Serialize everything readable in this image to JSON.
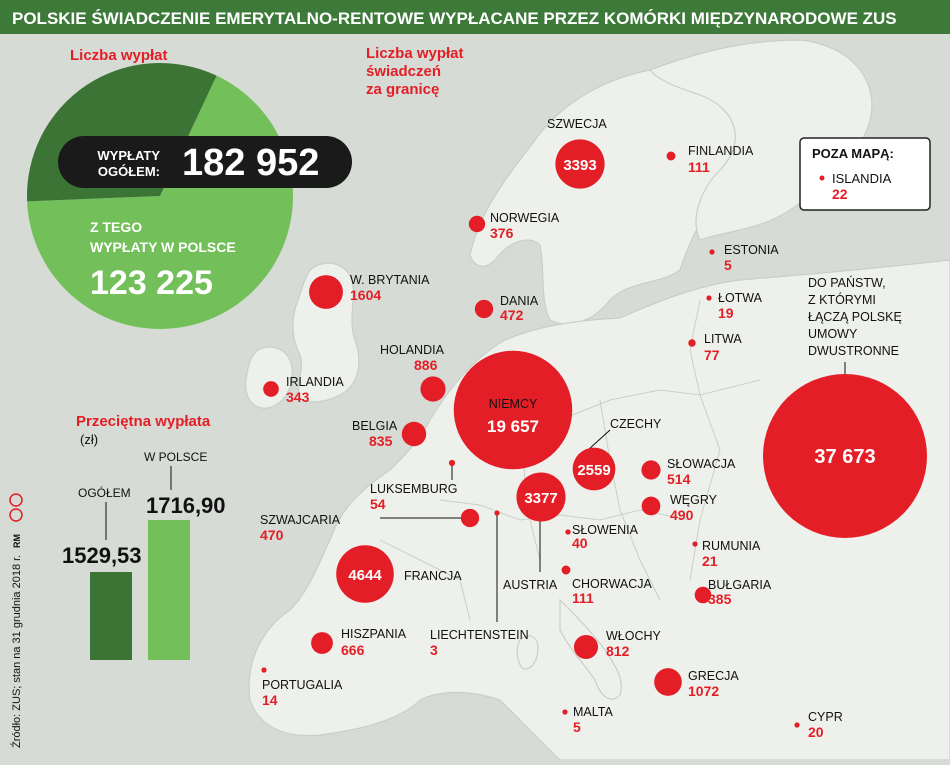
{
  "title": "POLSKIE ŚWIADCZENIE EMERYTALNO-RENTOWE WYPŁACANE PRZEZ KOMÓRKI MIĘDZYNARODOWE ZUS",
  "colors": {
    "header": "#3d7a3a",
    "red": "#e41e26",
    "dark_green": "#3b7434",
    "light_green": "#73c05a",
    "land": "#eef0ec",
    "sea": "#d6dbd5"
  },
  "pie": {
    "heading": "Liczba wypłat",
    "total_label_1": "WYPŁATY",
    "total_label_2": "OGÓŁEM:",
    "total_value": "182 952",
    "poland_label_1": "Z TEGO",
    "poland_label_2": "WYPŁATY W POLSCE",
    "poland_value": "123 225"
  },
  "map_heading": [
    "Liczba wypłat",
    "świadczeń",
    "za granicę"
  ],
  "offmap": {
    "title": "POZA MAPĄ:",
    "country": "ISLANDIA",
    "value": "22"
  },
  "bilateral_label": [
    "DO PAŃSTW,",
    "Z KTÓRYMI",
    "ŁĄCZĄ POLSKĘ",
    "UMOWY",
    "DWUSTRONNE"
  ],
  "source": "Źródło: ZUS; stan na 31 grudnia 2018 r.",
  "credit": "RM",
  "bars": {
    "heading": "Przeciętna wypłata",
    "unit": "(zł)",
    "labels": [
      "OGÓŁEM",
      "W POLSCE"
    ],
    "value_labels": [
      "1529,53",
      "1716,90"
    ]
  },
  "chart_data": [
    {
      "type": "pie",
      "categories": [
        "WYPŁATY W POLSCE",
        "Za granicę"
      ],
      "values": [
        123225,
        59727
      ],
      "total": 182952
    },
    {
      "type": "bar",
      "title": "Przeciętna wypłata",
      "ylabel": "(zł)",
      "categories": [
        "OGÓŁEM",
        "W POLSCE"
      ],
      "values": [
        1529.53,
        1716.9
      ]
    },
    {
      "type": "bubble-map",
      "title": "Liczba wypłat świadczeń za granicę",
      "points": [
        {
          "name": "SZWECJA",
          "value": 3393,
          "label": "3393"
        },
        {
          "name": "FINLANDIA",
          "value": 111,
          "label": "111"
        },
        {
          "name": "NORWEGIA",
          "value": 376,
          "label": "376"
        },
        {
          "name": "ESTONIA",
          "value": 5,
          "label": "5"
        },
        {
          "name": "W. BRYTANIA",
          "value": 1604,
          "label": "1604"
        },
        {
          "name": "DANIA",
          "value": 472,
          "label": "472"
        },
        {
          "name": "ŁOTWA",
          "value": 19,
          "label": "19"
        },
        {
          "name": "LITWA",
          "value": 77,
          "label": "77"
        },
        {
          "name": "HOLANDIA",
          "value": 886,
          "label": "886"
        },
        {
          "name": "IRLANDIA",
          "value": 343,
          "label": "343"
        },
        {
          "name": "NIEMCY",
          "value": 19657,
          "label": "19 657"
        },
        {
          "name": "BELGIA",
          "value": 835,
          "label": "835"
        },
        {
          "name": "CZECHY",
          "value": 2559,
          "label": "2559"
        },
        {
          "name": "LUKSEMBURG",
          "value": 54,
          "label": "54"
        },
        {
          "name": "SŁOWACJA",
          "value": 514,
          "label": "514"
        },
        {
          "name": "AUSTRIA",
          "value": 3377,
          "label": "3377"
        },
        {
          "name": "WĘGRY",
          "value": 490,
          "label": "490"
        },
        {
          "name": "SZWAJCARIA",
          "value": 470,
          "label": "470"
        },
        {
          "name": "SŁOWENIA",
          "value": 40,
          "label": "40"
        },
        {
          "name": "RUMUNIA",
          "value": 21,
          "label": "21"
        },
        {
          "name": "FRANCJA",
          "value": 4644,
          "label": "4644"
        },
        {
          "name": "CHORWACJA",
          "value": 111,
          "label": "111"
        },
        {
          "name": "BUŁGARIA",
          "value": 385,
          "label": "385"
        },
        {
          "name": "HISZPANIA",
          "value": 666,
          "label": "666"
        },
        {
          "name": "LIECHTENSTEIN",
          "value": 3,
          "label": "3"
        },
        {
          "name": "WŁOCHY",
          "value": 812,
          "label": "812"
        },
        {
          "name": "PORTUGALIA",
          "value": 14,
          "label": "14"
        },
        {
          "name": "GRECJA",
          "value": 1072,
          "label": "1072"
        },
        {
          "name": "MALTA",
          "value": 5,
          "label": "5"
        },
        {
          "name": "CYPR",
          "value": 20,
          "label": "20"
        },
        {
          "name": "ISLANDIA",
          "value": 22,
          "label": "22"
        },
        {
          "name": "DO PAŃSTW, Z KTÓRYMI ŁĄCZĄ POLSKĘ UMOWY DWUSTRONNE",
          "value": 37673,
          "label": "37 673"
        }
      ]
    }
  ]
}
